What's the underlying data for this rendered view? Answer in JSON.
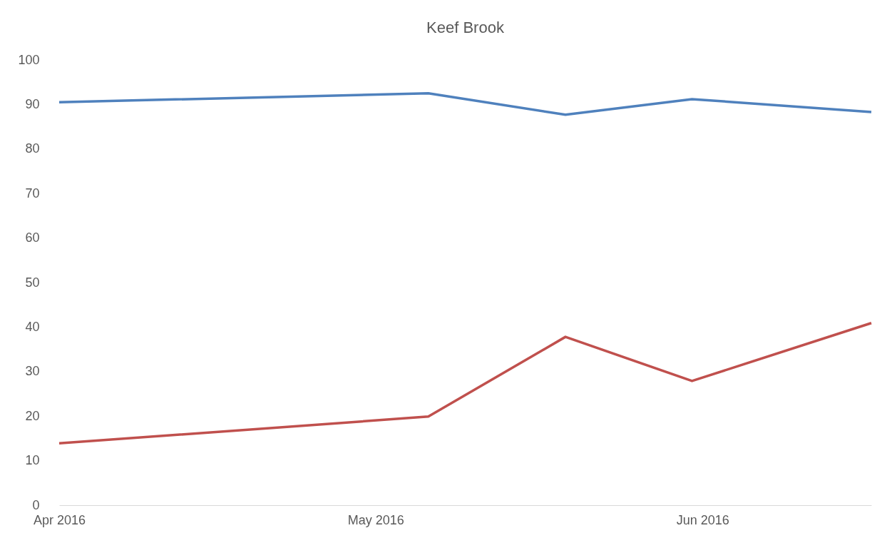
{
  "chart_data": {
    "type": "line",
    "title": "Keef Brook",
    "x": [
      "2016-04-01",
      "2016-05-06",
      "2016-05-19",
      "2016-05-31",
      "2016-06-17"
    ],
    "series": [
      {
        "color": "#4f81bd",
        "values": [
          90.5,
          92.5,
          87.7,
          91.2,
          88.3
        ]
      },
      {
        "color": "#c0504d",
        "values": [
          13.9,
          19.9,
          37.8,
          27.9,
          40.9
        ]
      }
    ],
    "xlim": [
      "2016-04-01",
      "2016-06-17"
    ],
    "xticks": [
      {
        "value": "2016-04-01",
        "label": "Apr 2016"
      },
      {
        "value": "2016-05-01",
        "label": "May 2016"
      },
      {
        "value": "2016-06-01",
        "label": "Jun 2016"
      }
    ],
    "ylim": [
      0,
      100
    ],
    "yticks": [
      0,
      10,
      20,
      30,
      40,
      50,
      60,
      70,
      80,
      90,
      100
    ],
    "grid": false,
    "legend": false,
    "marker": "none",
    "line_style": "solid"
  }
}
